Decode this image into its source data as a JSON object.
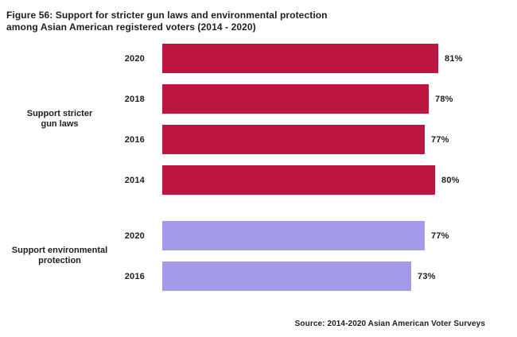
{
  "header": {
    "title_line1": "Figure 56: Support for stricter gun laws and environmental protection",
    "title_line2": "among Asian American registered voters (2014 - 2020)"
  },
  "chart_data": {
    "type": "bar",
    "orientation": "horizontal",
    "title": "Figure 56: Support for stricter gun laws and environmental protection among Asian American registered voters (2014 - 2020)",
    "value_unit": "%",
    "axis_range": [
      0,
      100
    ],
    "grid": false,
    "legend": false,
    "groups": [
      {
        "label": "Support stricter gun laws",
        "label_lines": [
          "Support stricter",
          "gun laws"
        ],
        "color": "#bd1440",
        "bars": [
          {
            "year": "2020",
            "value": 81,
            "label": "81%"
          },
          {
            "year": "2018",
            "value": 78,
            "label": "78%"
          },
          {
            "year": "2016",
            "value": 77,
            "label": "77%"
          },
          {
            "year": "2014",
            "value": 80,
            "label": "80%"
          }
        ]
      },
      {
        "label": "Support environmental protection",
        "label_lines": [
          "Support environmental",
          "protection"
        ],
        "color": "#a39be8",
        "bars": [
          {
            "year": "2020",
            "value": 77,
            "label": "77%"
          },
          {
            "year": "2016",
            "value": 73,
            "label": "73%"
          }
        ]
      }
    ],
    "source": "Source: 2014-2020 Asian American Voter Surveys"
  },
  "colors": {
    "background": "#ffffff",
    "text": "#1f1d1e",
    "gun_laws_bar": "#bd1440",
    "environment_bar": "#a39be8"
  }
}
